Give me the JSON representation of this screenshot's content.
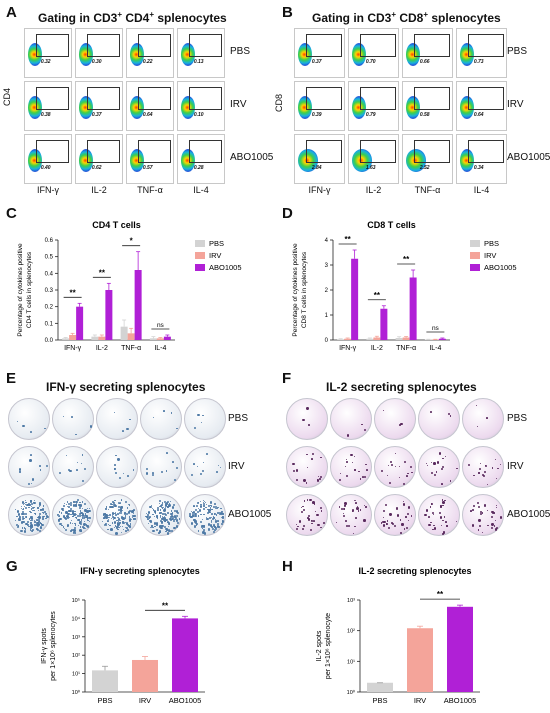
{
  "panels": {
    "A": {
      "letter": "A",
      "title_pre": "Gating in CD3",
      "title_mid": " CD4",
      "title_post": " splenocytes",
      "sup": "+",
      "y_axis": "CD4",
      "rows": [
        "PBS",
        "IRV",
        "ABO1005"
      ],
      "cols": [
        "IFN-γ",
        "IL-2",
        "TNF-α",
        "IL-4"
      ],
      "values": [
        [
          "0.32",
          "0.30",
          "0.22",
          "0.13"
        ],
        [
          "0.38",
          "0.37",
          "0.64",
          "0.10"
        ],
        [
          "0.40",
          "0.62",
          "0.57",
          "0.28"
        ]
      ]
    },
    "B": {
      "letter": "B",
      "title_pre": "Gating in CD3",
      "title_mid": " CD8",
      "title_post": " splenocytes",
      "sup": "+",
      "y_axis": "CD8",
      "rows": [
        "PBS",
        "IRV",
        "ABO1005"
      ],
      "cols": [
        "IFN-γ",
        "IL-2",
        "TNF-α",
        "IL-4"
      ],
      "values": [
        [
          "0.37",
          "0.70",
          "0.66",
          "0.73"
        ],
        [
          "0.39",
          "0.79",
          "0.58",
          "0.64"
        ],
        [
          "2.84",
          "1.63",
          "2.52",
          "0.34"
        ]
      ]
    },
    "E": {
      "letter": "E",
      "title": "IFN-γ secreting splenocytes",
      "rows": [
        "PBS",
        "IRV",
        "ABO1005"
      ]
    },
    "F": {
      "letter": "F",
      "title": "IL-2 secreting splenocytes",
      "rows": [
        "PBS",
        "IRV",
        "ABO1005"
      ]
    }
  },
  "colors": {
    "PBS": "#d3d3d3",
    "IRV": "#f4a49a",
    "ABO1005": "#b020d6",
    "error": "#333333"
  },
  "chart_data": [
    {
      "id": "C",
      "letter": "C",
      "type": "bar",
      "title": "CD4 T cells",
      "ylabel_lines": [
        "Percentage of cytokines positive",
        "CD4 T cells in splenocytes"
      ],
      "categories": [
        "IFN-γ",
        "IL-2",
        "TNF-α",
        "IL-4"
      ],
      "ylim": [
        0,
        0.6
      ],
      "yticks": [
        "0.0",
        "0.1",
        "0.2",
        "0.3",
        "0.4",
        "0.5",
        "0.6"
      ],
      "series": [
        {
          "name": "PBS",
          "values": [
            0.01,
            0.02,
            0.08,
            0.01
          ],
          "errors": [
            0.005,
            0.01,
            0.04,
            0.01
          ]
        },
        {
          "name": "IRV",
          "values": [
            0.03,
            0.02,
            0.04,
            0.01
          ],
          "errors": [
            0.01,
            0.01,
            0.03,
            0.005
          ]
        },
        {
          "name": "ABO1005",
          "values": [
            0.2,
            0.3,
            0.42,
            0.02
          ],
          "errors": [
            0.02,
            0.04,
            0.11,
            0.01
          ]
        }
      ],
      "significance": [
        "**",
        "**",
        "*",
        "ns"
      ],
      "legend": "top-right"
    },
    {
      "id": "D",
      "letter": "D",
      "type": "bar",
      "title": "CD8 T cells",
      "ylabel_lines": [
        "Percentage of cytokines positive",
        "CD8 T cells in splenocytes"
      ],
      "categories": [
        "IFN-γ",
        "IL-2",
        "TNF-α",
        "IL-4"
      ],
      "ylim": [
        0,
        4
      ],
      "yticks": [
        "0",
        "1",
        "2",
        "3",
        "4"
      ],
      "series": [
        {
          "name": "PBS",
          "values": [
            0.03,
            0.05,
            0.08,
            0.02
          ],
          "errors": [
            0.02,
            0.03,
            0.05,
            0.01
          ]
        },
        {
          "name": "IRV",
          "values": [
            0.05,
            0.1,
            0.1,
            0.02
          ],
          "errors": [
            0.03,
            0.05,
            0.04,
            0.01
          ]
        },
        {
          "name": "ABO1005",
          "values": [
            3.25,
            1.25,
            2.5,
            0.05
          ],
          "errors": [
            0.35,
            0.12,
            0.3,
            0.03
          ]
        }
      ],
      "significance": [
        "**",
        "**",
        "**",
        "ns"
      ],
      "legend": "top-right"
    },
    {
      "id": "G",
      "letter": "G",
      "type": "bar",
      "title": "IFN-γ secreting splenocytes",
      "ylabel_lines": [
        "IFN-γ spots",
        "per 1×10⁶ splenocytes"
      ],
      "scale": "log",
      "categories": [
        "PBS",
        "IRV",
        "ABO1005"
      ],
      "ylog_range": [
        0,
        5
      ],
      "yticks": [
        "10⁰",
        "10¹",
        "10²",
        "10³",
        "10⁴",
        "10⁵"
      ],
      "values": [
        15,
        55,
        10000
      ],
      "err_hi": [
        25,
        85,
        13000
      ],
      "significance": "**"
    },
    {
      "id": "H",
      "letter": "H",
      "type": "bar",
      "title": "IL-2 secreting splenocytes",
      "ylabel_lines": [
        "IL-2 spots",
        "per 1×10⁶ splenocyte"
      ],
      "scale": "log",
      "categories": [
        "PBS",
        "IRV",
        "ABO1005"
      ],
      "ylog_range": [
        0,
        3
      ],
      "yticks": [
        "10⁰",
        "10¹",
        "10²",
        "10³"
      ],
      "values": [
        2,
        120,
        600
      ],
      "err_hi": [
        2,
        140,
        680
      ],
      "significance": "**"
    }
  ]
}
